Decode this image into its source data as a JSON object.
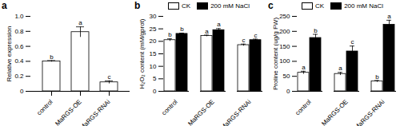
{
  "chart_data": [
    {
      "type": "bar",
      "title": "a",
      "categories": [
        "control",
        "MaRGS-OE",
        "MaRGS-RNAi"
      ],
      "ylabel": "Relative expression",
      "values": [
        0.4,
        0.79,
        0.12
      ],
      "errors": [
        0.01,
        0.07,
        0.02
      ],
      "annotations": [
        "b",
        "a",
        "c"
      ],
      "color": "#ffffff",
      "ylim": [
        0,
        1
      ],
      "yticks": [
        0,
        0.2,
        0.4,
        0.6,
        0.8,
        {
          "value": 1,
          "label": "1.0"
        }
      ]
    },
    {
      "type": "bar",
      "title": "b",
      "categories": [
        "control",
        "MaRGS-OE",
        "MaRGS-RNAi"
      ],
      "ylabel": "H₂O₂ content (mM/gprot)",
      "series": [
        {
          "name": "CK",
          "color": "#ffffff",
          "values": [
            20.5,
            22.2,
            18.5
          ],
          "errors": [
            0.5,
            0.3,
            0.4
          ],
          "annotations": [
            "b",
            "a",
            "c"
          ]
        },
        {
          "name": "200 mM NaCl",
          "color": "#000000",
          "values": [
            23.0,
            24.5,
            20.5
          ],
          "errors": [
            0.3,
            0.6,
            0.4
          ],
          "annotations": [
            "b",
            "a",
            "c"
          ]
        }
      ],
      "legend": "top-left",
      "ylim": [
        0,
        30
      ],
      "yticks": [
        0,
        5,
        10,
        15,
        20,
        25,
        30
      ]
    },
    {
      "type": "bar",
      "title": "c",
      "categories": [
        "control",
        "MaRGS-OE",
        "MaRGS-RNAi"
      ],
      "ylabel": "Proline content (ug/g FW)",
      "series": [
        {
          "name": "CK",
          "color": "#ffffff",
          "values": [
            62,
            58,
            33
          ],
          "errors": [
            5,
            5,
            3
          ],
          "annotations": [
            "a",
            "a",
            "b"
          ]
        },
        {
          "name": "200 mM NaCl",
          "color": "#000000",
          "values": [
            178,
            133,
            222
          ],
          "errors": [
            12,
            18,
            15
          ],
          "annotations": [
            "b",
            "c",
            "a"
          ]
        }
      ],
      "legend": "top-left",
      "ylim": [
        0,
        250
      ],
      "yticks": [
        0,
        50,
        100,
        150,
        200,
        250
      ]
    }
  ]
}
